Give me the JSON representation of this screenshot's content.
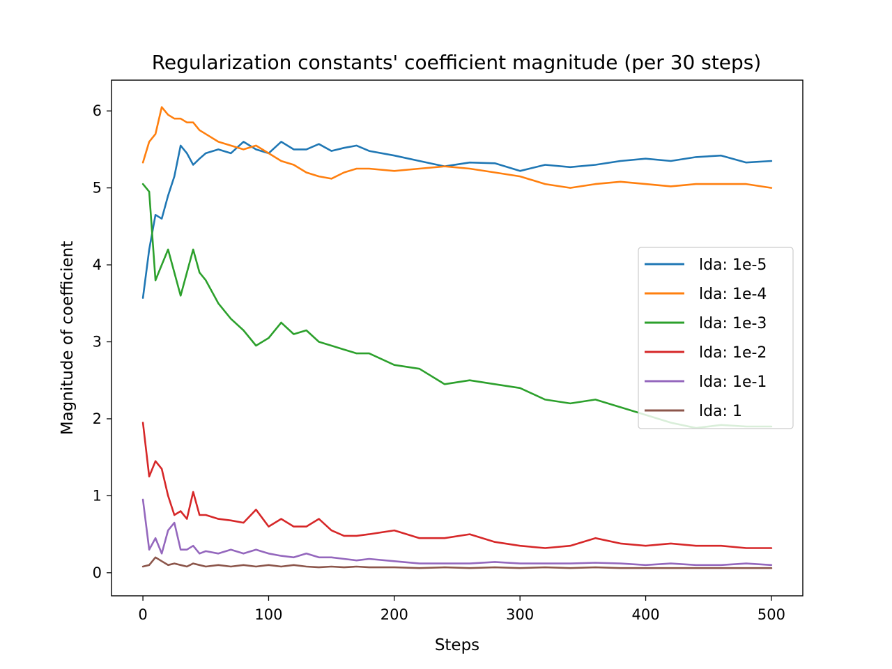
{
  "chart_data": {
    "type": "line",
    "title": "Regularization constants' coefficient magnitude (per 30 steps)",
    "xlabel": "Steps",
    "ylabel": "Magnitude of coefficient",
    "xlim": [
      -25,
      525
    ],
    "ylim": [
      -0.3,
      6.4
    ],
    "x_ticks": [
      0,
      100,
      200,
      300,
      400,
      500
    ],
    "y_ticks": [
      0,
      1,
      2,
      3,
      4,
      5,
      6
    ],
    "x_tick_labels": [
      "0",
      "100",
      "200",
      "300",
      "400",
      "500"
    ],
    "y_tick_labels": [
      "0",
      "1",
      "2",
      "3",
      "4",
      "5",
      "6"
    ],
    "grid": false,
    "legend_position": "center-right",
    "x": [
      0,
      5,
      10,
      15,
      20,
      25,
      30,
      35,
      40,
      45,
      50,
      60,
      70,
      80,
      90,
      100,
      110,
      120,
      130,
      140,
      150,
      160,
      170,
      180,
      200,
      220,
      240,
      260,
      280,
      300,
      320,
      340,
      360,
      380,
      400,
      420,
      440,
      460,
      480,
      500
    ],
    "series": [
      {
        "name": "lda: 1e-5",
        "color": "#1f77b4",
        "values": [
          3.57,
          4.2,
          4.65,
          4.6,
          4.9,
          5.15,
          5.55,
          5.45,
          5.3,
          5.38,
          5.45,
          5.5,
          5.45,
          5.6,
          5.5,
          5.45,
          5.6,
          5.5,
          5.5,
          5.57,
          5.48,
          5.52,
          5.55,
          5.48,
          5.42,
          5.35,
          5.28,
          5.33,
          5.32,
          5.22,
          5.3,
          5.27,
          5.3,
          5.35,
          5.38,
          5.35,
          5.4,
          5.42,
          5.33,
          5.35
        ]
      },
      {
        "name": "lda: 1e-4",
        "color": "#ff7f0e",
        "values": [
          5.33,
          5.6,
          5.7,
          6.05,
          5.95,
          5.9,
          5.9,
          5.85,
          5.85,
          5.75,
          5.7,
          5.6,
          5.55,
          5.5,
          5.55,
          5.45,
          5.35,
          5.3,
          5.2,
          5.15,
          5.12,
          5.2,
          5.25,
          5.25,
          5.22,
          5.25,
          5.28,
          5.25,
          5.2,
          5.15,
          5.05,
          5.0,
          5.05,
          5.08,
          5.05,
          5.02,
          5.05,
          5.05,
          5.05,
          5.0
        ]
      },
      {
        "name": "lda: 1e-3",
        "color": "#2ca02c",
        "values": [
          5.05,
          4.95,
          3.8,
          4.0,
          4.2,
          3.9,
          3.6,
          3.9,
          4.2,
          3.9,
          3.8,
          3.5,
          3.3,
          3.15,
          2.95,
          3.05,
          3.25,
          3.1,
          3.15,
          3.0,
          2.95,
          2.9,
          2.85,
          2.85,
          2.7,
          2.65,
          2.45,
          2.5,
          2.45,
          2.4,
          2.25,
          2.2,
          2.25,
          2.15,
          2.05,
          1.95,
          1.88,
          1.92,
          1.9,
          1.9
        ]
      },
      {
        "name": "lda: 1e-2",
        "color": "#d62728",
        "values": [
          1.95,
          1.25,
          1.45,
          1.35,
          1.0,
          0.75,
          0.8,
          0.7,
          1.05,
          0.75,
          0.75,
          0.7,
          0.68,
          0.65,
          0.82,
          0.6,
          0.7,
          0.6,
          0.6,
          0.7,
          0.55,
          0.48,
          0.48,
          0.5,
          0.55,
          0.45,
          0.45,
          0.5,
          0.4,
          0.35,
          0.32,
          0.35,
          0.45,
          0.38,
          0.35,
          0.38,
          0.35,
          0.35,
          0.32,
          0.32
        ]
      },
      {
        "name": "lda: 1e-1",
        "color": "#9467bd",
        "values": [
          0.95,
          0.3,
          0.45,
          0.25,
          0.55,
          0.65,
          0.3,
          0.3,
          0.35,
          0.25,
          0.28,
          0.25,
          0.3,
          0.25,
          0.3,
          0.25,
          0.22,
          0.2,
          0.25,
          0.2,
          0.2,
          0.18,
          0.16,
          0.18,
          0.15,
          0.12,
          0.12,
          0.12,
          0.14,
          0.12,
          0.12,
          0.12,
          0.13,
          0.12,
          0.1,
          0.12,
          0.1,
          0.1,
          0.12,
          0.1
        ]
      },
      {
        "name": "lda: 1",
        "color": "#8c564b",
        "values": [
          0.08,
          0.1,
          0.2,
          0.15,
          0.1,
          0.12,
          0.1,
          0.08,
          0.12,
          0.1,
          0.08,
          0.1,
          0.08,
          0.1,
          0.08,
          0.1,
          0.08,
          0.1,
          0.08,
          0.07,
          0.08,
          0.07,
          0.08,
          0.07,
          0.07,
          0.06,
          0.07,
          0.06,
          0.07,
          0.06,
          0.07,
          0.06,
          0.07,
          0.06,
          0.06,
          0.06,
          0.06,
          0.06,
          0.06,
          0.06
        ]
      }
    ]
  }
}
